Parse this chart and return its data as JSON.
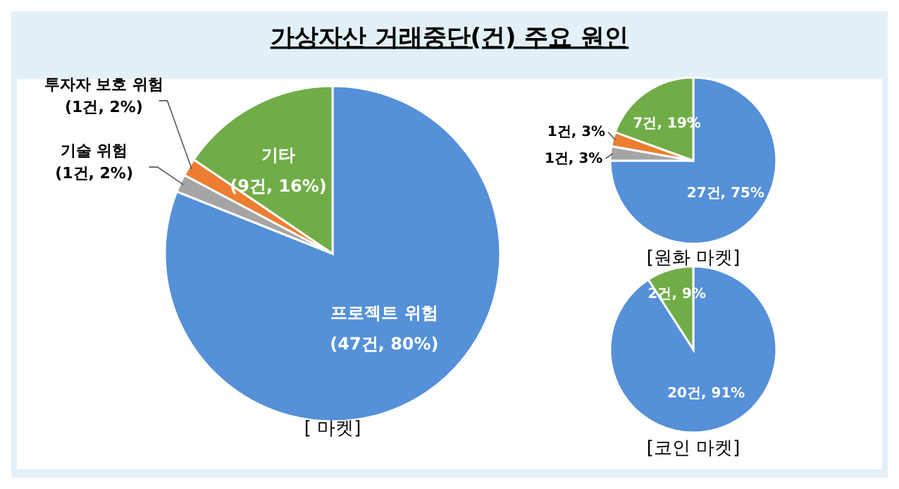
{
  "chart_data": [
    {
      "type": "pie",
      "title": "가상자산 거래중단(건) 주요 원인",
      "xlabel": "[ 마켓]",
      "categories": [
        "프로젝트 위험",
        "기술 위험",
        "투자자 보호 위험",
        "기타"
      ],
      "values": [
        47,
        1,
        1,
        9
      ],
      "colors": [
        "#5590d8",
        "#a5a5a5",
        "#ed7d31",
        "#70ad47"
      ],
      "value_labels": [
        "(47건, 80%)",
        "(1건, 2%)",
        "(1건, 2%)",
        "(9건, 16%)"
      ]
    },
    {
      "type": "pie",
      "xlabel": "[원화 마켓]",
      "categories": [
        null,
        null,
        null,
        null
      ],
      "values": [
        27,
        1,
        1,
        7
      ],
      "colors": [
        "#5590d8",
        "#a5a5a5",
        "#ed7d31",
        "#70ad47"
      ],
      "value_labels": [
        "27건, 75%",
        "1건, 3%",
        "1건, 3%",
        "7건, 19%"
      ]
    },
    {
      "type": "pie",
      "xlabel": "[코인 마켓]",
      "categories": [
        null,
        null
      ],
      "values": [
        20,
        2
      ],
      "colors": [
        "#5590d8",
        "#70ad47"
      ],
      "value_labels": [
        "20건, 91%",
        "2건, 9%"
      ]
    }
  ]
}
